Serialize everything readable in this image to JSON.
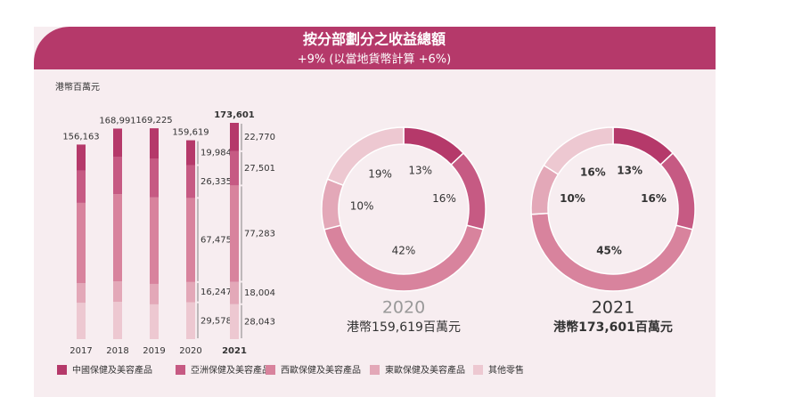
{
  "title": "按分部劃分之收益總額",
  "subtitle": "+9% (以當地貨幣計算 +6%)",
  "chart_data": [
    {
      "type": "bar",
      "stacked": true,
      "y_label": "港幣百萬元",
      "categories": [
        "2017",
        "2018",
        "2019",
        "2020",
        "2021"
      ],
      "totals": [
        156163,
        168991,
        169225,
        159619,
        173601
      ],
      "total_labels": [
        "156,163",
        "168,991",
        "169,225",
        "159,619",
        "173,601"
      ],
      "series": [
        {
          "name": "中國保健及美容產品",
          "color": "#b5396a",
          "values": [
            21000,
            22800,
            24200,
            19984,
            22770
          ],
          "value_labels": [
            null,
            null,
            null,
            "19,984",
            "22,770"
          ]
        },
        {
          "name": "亞洲保健及美容產品",
          "color": "#c65a83",
          "values": [
            25800,
            29900,
            31300,
            26335,
            27501
          ],
          "value_labels": [
            null,
            null,
            null,
            "26,335",
            "27,501"
          ]
        },
        {
          "name": "西歐保健及美容產品",
          "color": "#d8839d",
          "values": [
            64400,
            69900,
            69400,
            67475,
            77283
          ],
          "value_labels": [
            null,
            null,
            null,
            "67,475",
            "77,283"
          ]
        },
        {
          "name": "東歐保健及美容產品",
          "color": "#e3a8b8",
          "values": [
            15800,
            16400,
            16400,
            16247,
            18004
          ],
          "value_labels": [
            null,
            null,
            null,
            "16,247",
            "18,004"
          ]
        },
        {
          "name": "其他零售",
          "color": "#edc8d1",
          "values": [
            29163,
            29991,
            27925,
            29578,
            28043
          ],
          "value_labels": [
            null,
            null,
            null,
            "29,578",
            "28,043"
          ]
        }
      ]
    },
    {
      "type": "pie",
      "title": "2020",
      "subtitle": "港幣159,619百萬元",
      "values": [
        13,
        16,
        42,
        10,
        19
      ],
      "value_labels": [
        "13%",
        "16%",
        "42%",
        "10%",
        "19%"
      ],
      "colors": [
        "#b5396a",
        "#c65a83",
        "#d8839d",
        "#e3a8b8",
        "#edc8d1"
      ]
    },
    {
      "type": "pie",
      "title": "2021",
      "subtitle": "港幣173,601百萬元",
      "values": [
        13,
        16,
        45,
        10,
        16
      ],
      "value_labels": [
        "13%",
        "16%",
        "45%",
        "10%",
        "16%"
      ],
      "colors": [
        "#b5396a",
        "#c65a83",
        "#d8839d",
        "#e3a8b8",
        "#edc8d1"
      ]
    }
  ]
}
